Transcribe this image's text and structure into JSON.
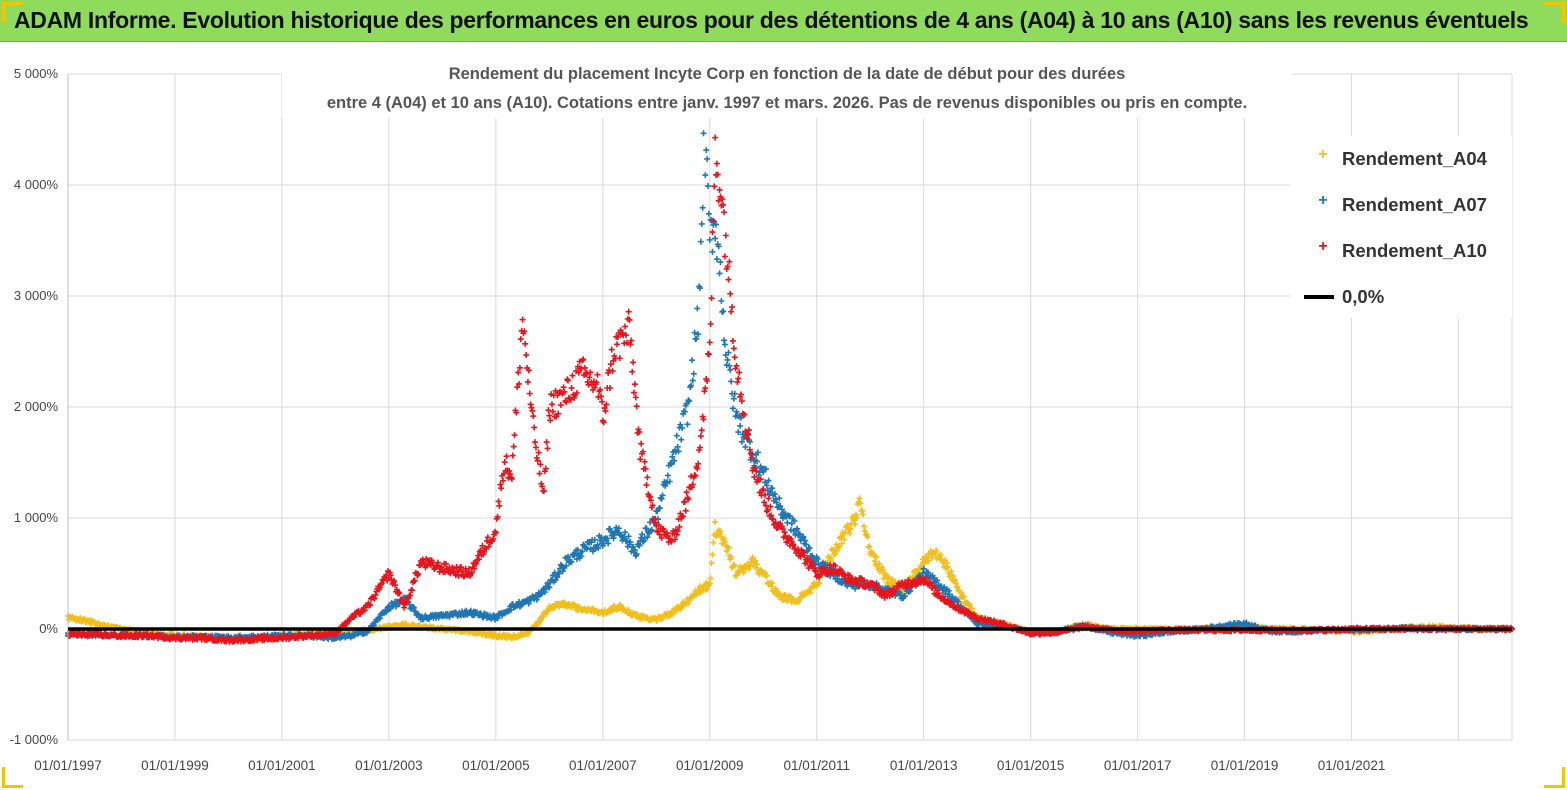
{
  "banner": {
    "title": "ADAM Informe. Evolution historique des performances en euros pour des détentions de 4 ans (A04) à 10 ans (A10) sans les revenus éventuels"
  },
  "chart_data": {
    "type": "scatter",
    "title_line1": "Rendement du placement Incyte Corp en fonction de la date de début pour des durées",
    "title_line2": "entre 4 (A04) et 10 ans (A10). Cotations entre janv. 1997 et mars. 2026. Pas de revenus disponibles ou pris en compte.",
    "ylim": [
      -1000,
      5000
    ],
    "xlim": [
      1997.0,
      2024.0
    ],
    "y_ticks": [
      {
        "value": 5000,
        "label": "5 000%"
      },
      {
        "value": 4000,
        "label": "4 000%"
      },
      {
        "value": 3000,
        "label": "3 000%"
      },
      {
        "value": 2000,
        "label": "2 000%"
      },
      {
        "value": 1000,
        "label": "1 000%"
      },
      {
        "value": 0,
        "label": "0%"
      },
      {
        "value": -1000,
        "label": "-1 000%"
      }
    ],
    "x_ticks": [
      {
        "value": 1997,
        "label": "01/01/1997"
      },
      {
        "value": 1999,
        "label": "01/01/1999"
      },
      {
        "value": 2001,
        "label": "01/01/2001"
      },
      {
        "value": 2003,
        "label": "01/01/2003"
      },
      {
        "value": 2005,
        "label": "01/01/2005"
      },
      {
        "value": 2007,
        "label": "01/01/2007"
      },
      {
        "value": 2009,
        "label": "01/01/2009"
      },
      {
        "value": 2011,
        "label": "01/01/2011"
      },
      {
        "value": 2013,
        "label": "01/01/2013"
      },
      {
        "value": 2015,
        "label": "01/01/2015"
      },
      {
        "value": 2017,
        "label": "01/01/2017"
      },
      {
        "value": 2019,
        "label": "01/01/2019"
      },
      {
        "value": 2021,
        "label": "01/01/2021"
      }
    ],
    "extra_gridline": 2023,
    "reference_line": {
      "name": "0,0%",
      "value": 0,
      "color": "#000000"
    },
    "series": [
      {
        "name": "Rendement_A04",
        "color": "#f2be1a",
        "x": [
          1997.0,
          1997.3,
          1997.6,
          1998.0,
          1998.5,
          1999.0,
          1999.5,
          2000.0,
          2000.5,
          2001.0,
          2001.5,
          2002.0,
          2002.5,
          2003.0,
          2003.3,
          2003.6,
          2004.0,
          2004.5,
          2005.0,
          2005.3,
          2005.6,
          2005.8,
          2006.0,
          2006.3,
          2006.6,
          2007.0,
          2007.3,
          2007.6,
          2008.0,
          2008.3,
          2008.6,
          2008.8,
          2009.0,
          2009.1,
          2009.25,
          2009.5,
          2009.8,
          2010.0,
          2010.3,
          2010.6,
          2011.0,
          2011.3,
          2011.6,
          2011.8,
          2012.0,
          2012.3,
          2012.6,
          2013.0,
          2013.2,
          2013.4,
          2013.7,
          2014.0,
          2014.5,
          2015.0,
          2015.5,
          2016.0,
          2016.5,
          2017.0,
          2017.5,
          2018.0,
          2018.5,
          2019.0,
          2019.5,
          2020.0,
          2020.5,
          2021.0,
          2021.5,
          2022.0,
          2022.5,
          2023.0,
          2023.5,
          2024.0
        ],
        "y": [
          100,
          80,
          40,
          0,
          -40,
          -60,
          -70,
          -80,
          -100,
          -60,
          -50,
          -40,
          -20,
          20,
          40,
          20,
          0,
          -20,
          -60,
          -70,
          -40,
          60,
          200,
          220,
          180,
          150,
          200,
          120,
          80,
          150,
          250,
          350,
          400,
          900,
          800,
          500,
          600,
          500,
          300,
          250,
          400,
          700,
          900,
          1100,
          700,
          450,
          350,
          600,
          700,
          600,
          300,
          100,
          40,
          -30,
          -20,
          40,
          0,
          0,
          0,
          0,
          10,
          20,
          0,
          0,
          -10,
          -20,
          -10,
          10,
          20,
          10,
          0,
          0
        ]
      },
      {
        "name": "Rendement_A07",
        "color": "#1f77b4",
        "x": [
          1997.0,
          1997.5,
          1998.0,
          1998.5,
          1999.0,
          1999.5,
          2000.0,
          2000.5,
          2001.0,
          2001.5,
          2002.0,
          2002.3,
          2002.6,
          2003.0,
          2003.3,
          2003.6,
          2004.0,
          2004.5,
          2005.0,
          2005.3,
          2005.6,
          2005.8,
          2006.0,
          2006.3,
          2006.6,
          2007.0,
          2007.3,
          2007.6,
          2008.0,
          2008.3,
          2008.6,
          2008.8,
          2008.9,
          2009.0,
          2009.1,
          2009.2,
          2009.3,
          2009.5,
          2009.8,
          2010.0,
          2010.3,
          2010.6,
          2011.0,
          2011.3,
          2011.6,
          2012.0,
          2012.3,
          2012.6,
          2013.0,
          2013.3,
          2013.6,
          2014.0,
          2014.5,
          2015.0,
          2015.5,
          2016.0,
          2016.5,
          2017.0,
          2017.5,
          2018.0,
          2018.5,
          2019.0,
          2019.5,
          2020.0,
          2020.5,
          2021.0,
          2021.5,
          2022.0,
          2022.5,
          2023.0,
          2023.5,
          2024.0
        ],
        "y": [
          -50,
          -50,
          -60,
          -60,
          -70,
          -70,
          -80,
          -70,
          -60,
          -60,
          -80,
          -60,
          -20,
          200,
          260,
          100,
          120,
          150,
          100,
          200,
          250,
          300,
          400,
          600,
          700,
          800,
          900,
          700,
          1000,
          1500,
          2000,
          2900,
          4500,
          3500,
          3700,
          3200,
          2500,
          1900,
          1600,
          1400,
          1100,
          900,
          600,
          500,
          400,
          400,
          350,
          300,
          500,
          400,
          250,
          50,
          30,
          -30,
          -20,
          30,
          -30,
          -60,
          -30,
          -10,
          20,
          50,
          -20,
          -20,
          -10,
          -10,
          0,
          10,
          0,
          0,
          0,
          0
        ]
      },
      {
        "name": "Rendement_A10",
        "color": "#e8141c",
        "x": [
          1997.0,
          1997.5,
          1998.0,
          1998.5,
          1999.0,
          1999.5,
          2000.0,
          2000.5,
          2001.0,
          2001.5,
          2002.0,
          2002.3,
          2002.6,
          2003.0,
          2003.3,
          2003.6,
          2004.0,
          2004.5,
          2005.0,
          2005.15,
          2005.3,
          2005.5,
          2005.7,
          2005.9,
          2006.0,
          2006.3,
          2006.6,
          2006.9,
          2007.0,
          2007.2,
          2007.5,
          2007.7,
          2007.9,
          2008.0,
          2008.3,
          2008.6,
          2008.8,
          2009.0,
          2009.1,
          2009.2,
          2009.3,
          2009.5,
          2009.8,
          2010.0,
          2010.3,
          2010.6,
          2011.0,
          2011.3,
          2011.6,
          2012.0,
          2012.3,
          2012.6,
          2013.0,
          2013.3,
          2013.6,
          2014.0,
          2014.5,
          2015.0,
          2015.5,
          2016.0,
          2016.5,
          2017.0,
          2017.5,
          2018.0,
          2018.5,
          2019.0,
          2019.5,
          2020.0,
          2020.5,
          2021.0,
          2021.5,
          2022.0,
          2022.5,
          2023.0,
          2023.5,
          2024.0
        ],
        "y": [
          -50,
          -50,
          -60,
          -60,
          -80,
          -80,
          -100,
          -90,
          -80,
          -60,
          -40,
          100,
          200,
          500,
          200,
          600,
          550,
          500,
          900,
          1500,
          1400,
          2800,
          1800,
          1200,
          2000,
          2100,
          2300,
          2200,
          1900,
          2500,
          2700,
          1600,
          1200,
          900,
          800,
          1200,
          1600,
          2500,
          4300,
          4000,
          3500,
          2400,
          1500,
          1200,
          900,
          750,
          500,
          550,
          450,
          400,
          300,
          400,
          450,
          300,
          200,
          100,
          40,
          -40,
          -30,
          20,
          -10,
          -20,
          -10,
          -10,
          -10,
          -10,
          -10,
          -10,
          -10,
          0,
          0,
          0,
          0,
          0,
          0,
          0
        ]
      }
    ]
  }
}
